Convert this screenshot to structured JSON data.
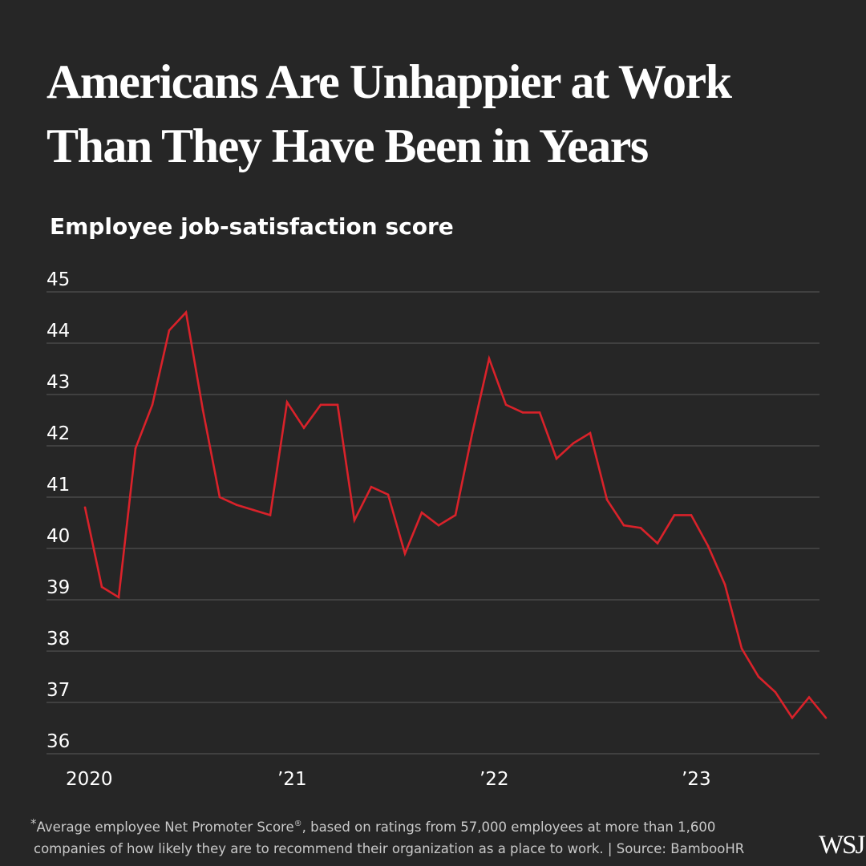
{
  "title": {
    "line1": "Americans Are Unhappier at Work",
    "line2": "Than They Have Been in Years"
  },
  "footnote": {
    "marker": "*",
    "text_before_mark": "Average employee Net Promoter Score",
    "registered_mark": "®",
    "text_after_mark": ", based on ratings from 57,000 employees at more than 1,600",
    "line2": "companies of how likely they are to recommend their organization as a place to work. | Source: BambooHR"
  },
  "logo": "WSJ",
  "colors": {
    "background": "#262626",
    "line": "#d9222a",
    "grid": "#5a5a5a",
    "text": "#ffffff",
    "footnote": "#c9c9c9"
  },
  "chart_data": {
    "type": "line",
    "title": "Employee job-satisfaction score",
    "ylim": [
      36,
      45
    ],
    "yticks": [
      45,
      44,
      43,
      42,
      41,
      40,
      39,
      38,
      37,
      36
    ],
    "xticks": [
      {
        "label": "2020",
        "x": 0
      },
      {
        "label": "’21",
        "x": 12
      },
      {
        "label": "’22",
        "x": 24
      },
      {
        "label": "’23",
        "x": 36
      }
    ],
    "grid": true,
    "series": [
      {
        "values": [
          40.8,
          39.25,
          39.05,
          41.95,
          42.8,
          44.25,
          44.6,
          42.7,
          41.0,
          40.85,
          40.75,
          40.65,
          42.85,
          42.35,
          42.8,
          42.8,
          40.55,
          41.2,
          41.05,
          39.9,
          40.7,
          40.45,
          40.65,
          42.25,
          43.7,
          42.8,
          42.65,
          42.65,
          41.75,
          42.05,
          42.25,
          40.95,
          40.45,
          40.4,
          40.1,
          40.65,
          40.65,
          40.05,
          39.3,
          38.05,
          37.5,
          37.2,
          36.7,
          37.1,
          36.7
        ]
      }
    ]
  }
}
